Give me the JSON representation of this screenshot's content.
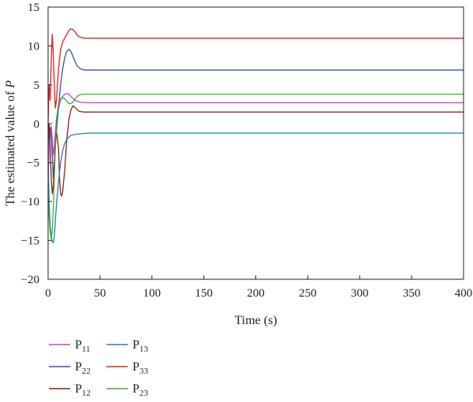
{
  "chart_data": {
    "type": "line",
    "xlabel": "Time (s)",
    "ylabel": "The estimated value of P",
    "ylabel_italic_part": "P",
    "xlim": [
      0,
      400
    ],
    "ylim": [
      -20,
      15
    ],
    "xticks": [
      0,
      50,
      100,
      150,
      200,
      250,
      300,
      350,
      400
    ],
    "yticks": [
      -20,
      -15,
      -10,
      -5,
      0,
      5,
      10,
      15
    ],
    "grid": false,
    "legend_placement": "below-left",
    "series": [
      {
        "name": "P11",
        "label_main": "P",
        "label_sub": "11",
        "color": "#d53fcf",
        "x": [
          0,
          1,
          2,
          3,
          4,
          5,
          6,
          7,
          8,
          10,
          12,
          14,
          16,
          18,
          20,
          22,
          25,
          28,
          32,
          40,
          60,
          100,
          200,
          300,
          400
        ],
        "y": [
          -8,
          -3,
          -1.5,
          -0.3,
          -2,
          -4,
          -3,
          -1,
          0.5,
          2,
          3,
          3.5,
          3.8,
          3.9,
          3.8,
          3.5,
          3.1,
          2.9,
          2.75,
          2.7,
          2.7,
          2.7,
          2.7,
          2.7,
          2.7
        ]
      },
      {
        "name": "P22",
        "label_main": "P",
        "label_sub": "22",
        "color": "#3450b8",
        "x": [
          0,
          1,
          2,
          3,
          4,
          5,
          6,
          7,
          8,
          10,
          12,
          14,
          16,
          18,
          20,
          22,
          25,
          28,
          32,
          36,
          40,
          60,
          100,
          200,
          300,
          400
        ],
        "y": [
          -3,
          -1,
          -0.5,
          -1.5,
          -4,
          -7,
          -5,
          -3,
          -1,
          2,
          5,
          7,
          8.5,
          9.3,
          9.6,
          9.3,
          8.3,
          7.4,
          7.0,
          6.9,
          6.9,
          6.9,
          6.9,
          6.9,
          6.9,
          6.9
        ]
      },
      {
        "name": "P12",
        "label_main": "P",
        "label_sub": "12",
        "color": "#8b2412",
        "x": [
          0,
          1,
          2,
          3,
          4,
          5,
          6,
          7,
          8,
          9,
          10,
          11,
          12,
          13,
          14,
          16,
          18,
          20,
          22,
          24,
          26,
          28,
          30,
          35,
          40,
          60,
          100,
          200,
          300,
          400
        ],
        "y": [
          -2,
          0,
          -3,
          -7,
          -9,
          -8,
          -5,
          -2,
          -1,
          -2,
          -3,
          -7,
          -9,
          -9.3,
          -8.8,
          -6,
          -2,
          0.5,
          1.8,
          2.3,
          2.1,
          1.8,
          1.6,
          1.5,
          1.5,
          1.5,
          1.5,
          1.5,
          1.5,
          1.5
        ]
      },
      {
        "name": "P13",
        "label_main": "P",
        "label_sub": "13",
        "color": "#1f7fbf",
        "x": [
          0,
          1,
          2,
          3,
          4,
          5,
          6,
          7,
          8,
          10,
          12,
          14,
          16,
          18,
          20,
          22,
          25,
          30,
          35,
          40,
          60,
          100,
          200,
          300,
          400
        ],
        "y": [
          -5,
          -10,
          -13,
          -14.5,
          -15.2,
          -15.3,
          -14.5,
          -12.5,
          -10.5,
          -7.5,
          -5,
          -3.5,
          -2.5,
          -2,
          -1.7,
          -1.5,
          -1.4,
          -1.3,
          -1.25,
          -1.2,
          -1.2,
          -1.2,
          -1.2,
          -1.2,
          -1.2
        ]
      },
      {
        "name": "P33",
        "label_main": "P",
        "label_sub": "33",
        "color": "#e02020",
        "x": [
          0,
          1,
          2,
          3,
          4,
          5,
          6,
          7,
          8,
          10,
          12,
          14,
          16,
          18,
          20,
          22,
          24,
          26,
          28,
          30,
          33,
          36,
          40,
          60,
          100,
          200,
          300,
          400
        ],
        "y": [
          0,
          5,
          3,
          8,
          11.5,
          9,
          5,
          2,
          3,
          7,
          9.5,
          10.5,
          11,
          11.5,
          12,
          12.2,
          12.1,
          11.8,
          11.4,
          11.2,
          11.05,
          11.0,
          11.0,
          11.0,
          11.0,
          11.0,
          11.0,
          11.0
        ]
      },
      {
        "name": "P23",
        "label_main": "P",
        "label_sub": "23",
        "color": "#3fae3a",
        "x": [
          0,
          1,
          2,
          3,
          4,
          5,
          6,
          7,
          8,
          10,
          12,
          14,
          16,
          18,
          20,
          22,
          24,
          26,
          28,
          30,
          33,
          36,
          40,
          60,
          100,
          200,
          300,
          400
        ],
        "y": [
          -8,
          -12,
          -14,
          -14.8,
          -14,
          -11,
          -7,
          -3,
          0.5,
          2.5,
          3.2,
          3.4,
          3.2,
          2.9,
          2.6,
          2.6,
          2.8,
          3.2,
          3.5,
          3.7,
          3.8,
          3.8,
          3.8,
          3.8,
          3.8,
          3.8,
          3.8,
          3.8
        ]
      }
    ]
  }
}
